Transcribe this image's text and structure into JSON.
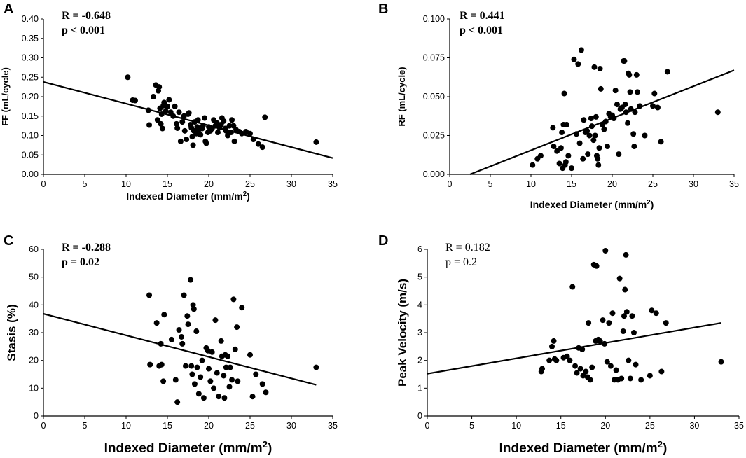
{
  "chart_data": [
    {
      "type": "scatter",
      "panel_label": "A",
      "title": "",
      "xlabel": "Indexed Diameter (mm/m²)",
      "ylabel": "FF (mL/cycle)",
      "xlim": [
        0,
        35
      ],
      "ylim": [
        0,
        0.4
      ],
      "xticks": [
        "0",
        "5",
        "10",
        "15",
        "20",
        "25",
        "30",
        "35"
      ],
      "yticks": [
        "0.00",
        "0.05",
        "0.10",
        "0.15",
        "0.20",
        "0.25",
        "0.30",
        "0.35",
        "0.40"
      ],
      "annotation": [
        "R = -0.648",
        "p < 0.001"
      ],
      "annotation_bold": true,
      "trendline": {
        "x": [
          0,
          35
        ],
        "y": [
          0.238,
          0.042
        ]
      },
      "points": [
        [
          10.2,
          0.25
        ],
        [
          10.8,
          0.191
        ],
        [
          11.1,
          0.19
        ],
        [
          12.7,
          0.165
        ],
        [
          12.8,
          0.127
        ],
        [
          13.3,
          0.2
        ],
        [
          13.6,
          0.23
        ],
        [
          13.8,
          0.14
        ],
        [
          13.9,
          0.215
        ],
        [
          14.0,
          0.225
        ],
        [
          14.1,
          0.17
        ],
        [
          14.2,
          0.13
        ],
        [
          14.3,
          0.155
        ],
        [
          14.4,
          0.118
        ],
        [
          14.5,
          0.177
        ],
        [
          14.6,
          0.185
        ],
        [
          14.8,
          0.163
        ],
        [
          15.0,
          0.175
        ],
        [
          15.2,
          0.192
        ],
        [
          15.4,
          0.16
        ],
        [
          15.7,
          0.15
        ],
        [
          15.9,
          0.175
        ],
        [
          16.1,
          0.13
        ],
        [
          16.2,
          0.119
        ],
        [
          16.4,
          0.16
        ],
        [
          16.6,
          0.085
        ],
        [
          16.8,
          0.135
        ],
        [
          17.0,
          0.15
        ],
        [
          17.1,
          0.112
        ],
        [
          17.3,
          0.09
        ],
        [
          17.5,
          0.155
        ],
        [
          17.6,
          0.158
        ],
        [
          17.8,
          0.128
        ],
        [
          17.9,
          0.12
        ],
        [
          18.0,
          0.097
        ],
        [
          18.1,
          0.075
        ],
        [
          18.2,
          0.112
        ],
        [
          18.3,
          0.135
        ],
        [
          18.5,
          0.105
        ],
        [
          18.6,
          0.122
        ],
        [
          18.7,
          0.14
        ],
        [
          18.8,
          0.115
        ],
        [
          19.0,
          0.102
        ],
        [
          19.2,
          0.118
        ],
        [
          19.3,
          0.125
        ],
        [
          19.5,
          0.145
        ],
        [
          19.6,
          0.085
        ],
        [
          19.7,
          0.08
        ],
        [
          19.9,
          0.108
        ],
        [
          20.0,
          0.122
        ],
        [
          20.2,
          0.112
        ],
        [
          20.4,
          0.118
        ],
        [
          20.6,
          0.14
        ],
        [
          20.8,
          0.125
        ],
        [
          21.0,
          0.132
        ],
        [
          21.1,
          0.108
        ],
        [
          21.3,
          0.12
        ],
        [
          21.5,
          0.128
        ],
        [
          21.6,
          0.145
        ],
        [
          21.8,
          0.137
        ],
        [
          22.0,
          0.118
        ],
        [
          22.1,
          0.112
        ],
        [
          22.3,
          0.1
        ],
        [
          22.5,
          0.125
        ],
        [
          22.7,
          0.108
        ],
        [
          22.8,
          0.14
        ],
        [
          23.0,
          0.125
        ],
        [
          23.1,
          0.085
        ],
        [
          23.3,
          0.115
        ],
        [
          23.7,
          0.11
        ],
        [
          24.0,
          0.105
        ],
        [
          24.5,
          0.11
        ],
        [
          25.0,
          0.105
        ],
        [
          25.4,
          0.09
        ],
        [
          26.0,
          0.078
        ],
        [
          26.5,
          0.07
        ],
        [
          26.8,
          0.147
        ],
        [
          33.0,
          0.083
        ]
      ]
    },
    {
      "type": "scatter",
      "panel_label": "B",
      "title": "",
      "xlabel": "Indexed Diameter (mm/m²)",
      "ylabel": "RF (mL/cycle)",
      "xlim": [
        0,
        35
      ],
      "ylim": [
        0,
        0.1
      ],
      "xticks": [
        "0",
        "5",
        "10",
        "15",
        "20",
        "25",
        "30",
        "35"
      ],
      "yticks": [
        "0.000",
        "0.025",
        "0.050",
        "0.075",
        "0.100"
      ],
      "annotation": [
        "R = 0.441",
        "p < 0.001"
      ],
      "annotation_bold": true,
      "trendline": {
        "x": [
          2.5,
          35
        ],
        "y": [
          0.0,
          0.067
        ]
      },
      "points": [
        [
          10.2,
          0.006
        ],
        [
          10.8,
          0.01
        ],
        [
          11.2,
          0.012
        ],
        [
          12.7,
          0.03
        ],
        [
          12.8,
          0.018
        ],
        [
          13.2,
          0.015
        ],
        [
          13.5,
          0.007
        ],
        [
          13.7,
          0.017
        ],
        [
          13.8,
          0.027
        ],
        [
          13.9,
          0.004
        ],
        [
          14.0,
          0.032
        ],
        [
          14.1,
          0.052
        ],
        [
          14.2,
          0.006
        ],
        [
          14.3,
          0.008
        ],
        [
          14.4,
          0.032
        ],
        [
          14.6,
          0.012
        ],
        [
          15.0,
          0.004
        ],
        [
          15.3,
          0.074
        ],
        [
          15.6,
          0.026
        ],
        [
          15.8,
          0.071
        ],
        [
          16.0,
          0.02
        ],
        [
          16.2,
          0.08
        ],
        [
          16.4,
          0.01
        ],
        [
          16.5,
          0.035
        ],
        [
          16.7,
          0.027
        ],
        [
          16.9,
          0.028
        ],
        [
          17.0,
          0.013
        ],
        [
          17.2,
          0.025
        ],
        [
          17.4,
          0.036
        ],
        [
          17.5,
          0.031
        ],
        [
          17.7,
          0.022
        ],
        [
          17.8,
          0.069
        ],
        [
          17.9,
          0.025
        ],
        [
          18.0,
          0.037
        ],
        [
          18.1,
          0.012
        ],
        [
          18.2,
          0.01
        ],
        [
          18.3,
          0.006
        ],
        [
          18.4,
          0.017
        ],
        [
          18.5,
          0.068
        ],
        [
          18.6,
          0.055
        ],
        [
          18.8,
          0.032
        ],
        [
          19.0,
          0.029
        ],
        [
          19.2,
          0.034
        ],
        [
          19.4,
          0.018
        ],
        [
          19.6,
          0.039
        ],
        [
          19.8,
          0.037
        ],
        [
          20.0,
          0.038
        ],
        [
          20.2,
          0.036
        ],
        [
          20.4,
          0.054
        ],
        [
          20.6,
          0.045
        ],
        [
          20.8,
          0.013
        ],
        [
          21.0,
          0.042
        ],
        [
          21.2,
          0.043
        ],
        [
          21.4,
          0.073
        ],
        [
          21.5,
          0.073
        ],
        [
          21.6,
          0.045
        ],
        [
          21.7,
          0.04
        ],
        [
          21.9,
          0.033
        ],
        [
          22.0,
          0.065
        ],
        [
          22.1,
          0.064
        ],
        [
          22.2,
          0.053
        ],
        [
          22.3,
          0.042
        ],
        [
          22.6,
          0.026
        ],
        [
          22.7,
          0.018
        ],
        [
          22.8,
          0.04
        ],
        [
          23.0,
          0.064
        ],
        [
          23.1,
          0.053
        ],
        [
          23.4,
          0.044
        ],
        [
          24.0,
          0.025
        ],
        [
          25.0,
          0.044
        ],
        [
          25.2,
          0.052
        ],
        [
          25.6,
          0.043
        ],
        [
          26.0,
          0.021
        ],
        [
          26.8,
          0.066
        ],
        [
          33.0,
          0.04
        ]
      ]
    },
    {
      "type": "scatter",
      "panel_label": "C",
      "title": "",
      "xlabel": "Indexed Diameter (mm/m²)",
      "ylabel": "Stasis (%)",
      "xlim": [
        0,
        35
      ],
      "ylim": [
        0,
        60
      ],
      "xticks": [
        "0",
        "5",
        "10",
        "15",
        "20",
        "25",
        "30",
        "35"
      ],
      "yticks": [
        "0",
        "10",
        "20",
        "30",
        "40",
        "50",
        "60"
      ],
      "annotation": [
        "R = -0.288",
        "p = 0.02"
      ],
      "annotation_bold": true,
      "trendline": {
        "x": [
          0,
          33
        ],
        "y": [
          36.8,
          11.2
        ]
      },
      "points": [
        [
          12.8,
          43.5
        ],
        [
          12.9,
          18.5
        ],
        [
          13.7,
          33.5
        ],
        [
          14.0,
          18.0
        ],
        [
          14.2,
          26.0
        ],
        [
          14.3,
          18.5
        ],
        [
          14.5,
          12.5
        ],
        [
          14.6,
          36.5
        ],
        [
          15.5,
          27.5
        ],
        [
          16.0,
          13.0
        ],
        [
          16.2,
          5.0
        ],
        [
          16.4,
          31.0
        ],
        [
          16.7,
          28.5
        ],
        [
          16.8,
          26.0
        ],
        [
          17.0,
          43.5
        ],
        [
          17.2,
          18.0
        ],
        [
          17.4,
          36.0
        ],
        [
          17.5,
          33.0
        ],
        [
          17.8,
          49.0
        ],
        [
          17.9,
          18.0
        ],
        [
          18.0,
          15.0
        ],
        [
          18.1,
          40.0
        ],
        [
          18.2,
          38.5
        ],
        [
          18.3,
          11.5
        ],
        [
          18.5,
          30.5
        ],
        [
          18.6,
          17.5
        ],
        [
          18.8,
          8.0
        ],
        [
          19.0,
          14.0
        ],
        [
          19.2,
          20.0
        ],
        [
          19.4,
          6.5
        ],
        [
          19.7,
          24.5
        ],
        [
          19.9,
          23.5
        ],
        [
          20.0,
          17.0
        ],
        [
          20.2,
          12.5
        ],
        [
          20.4,
          23.0
        ],
        [
          20.6,
          10.0
        ],
        [
          20.8,
          34.5
        ],
        [
          21.0,
          15.5
        ],
        [
          21.2,
          7.0
        ],
        [
          21.5,
          27.0
        ],
        [
          21.6,
          21.5
        ],
        [
          21.8,
          14.5
        ],
        [
          21.9,
          6.5
        ],
        [
          22.0,
          22.0
        ],
        [
          22.1,
          17.5
        ],
        [
          22.3,
          21.5
        ],
        [
          22.5,
          10.5
        ],
        [
          22.6,
          17.5
        ],
        [
          22.8,
          13.0
        ],
        [
          23.0,
          42.0
        ],
        [
          23.2,
          24.0
        ],
        [
          23.4,
          32.0
        ],
        [
          23.5,
          12.5
        ],
        [
          24.0,
          39.0
        ],
        [
          25.0,
          22.0
        ],
        [
          25.3,
          7.0
        ],
        [
          25.7,
          15.0
        ],
        [
          26.5,
          11.5
        ],
        [
          26.9,
          8.5
        ],
        [
          33.0,
          17.5
        ]
      ]
    },
    {
      "type": "scatter",
      "panel_label": "D",
      "title": "",
      "xlabel": "Indexed Diameter (mm/m²)",
      "ylabel": "Peak Velocity (m/s)",
      "xlim": [
        0,
        35
      ],
      "ylim": [
        0,
        6
      ],
      "xticks": [
        "0",
        "5",
        "10",
        "15",
        "20",
        "25",
        "30",
        "35"
      ],
      "yticks": [
        "0",
        "1",
        "2",
        "3",
        "4",
        "5",
        "6"
      ],
      "annotation": [
        "R = 0.182",
        "p = 0.2"
      ],
      "annotation_bold": false,
      "trendline": {
        "x": [
          0,
          33
        ],
        "y": [
          1.52,
          3.35
        ]
      },
      "points": [
        [
          12.8,
          1.6
        ],
        [
          12.9,
          1.7
        ],
        [
          13.7,
          2.0
        ],
        [
          14.0,
          2.5
        ],
        [
          14.2,
          2.7
        ],
        [
          14.3,
          2.05
        ],
        [
          14.5,
          2.0
        ],
        [
          15.3,
          2.1
        ],
        [
          15.7,
          2.15
        ],
        [
          16.0,
          2.0
        ],
        [
          16.3,
          4.65
        ],
        [
          16.6,
          1.8
        ],
        [
          16.8,
          1.55
        ],
        [
          17.0,
          2.45
        ],
        [
          17.2,
          1.7
        ],
        [
          17.4,
          2.4
        ],
        [
          17.5,
          1.45
        ],
        [
          17.8,
          1.6
        ],
        [
          18.0,
          1.4
        ],
        [
          18.1,
          3.35
        ],
        [
          18.3,
          1.3
        ],
        [
          18.5,
          1.75
        ],
        [
          18.7,
          5.45
        ],
        [
          18.9,
          2.7
        ],
        [
          19.0,
          5.4
        ],
        [
          19.2,
          2.75
        ],
        [
          19.4,
          2.7
        ],
        [
          19.7,
          3.45
        ],
        [
          19.9,
          2.6
        ],
        [
          20.0,
          5.95
        ],
        [
          20.2,
          1.95
        ],
        [
          20.4,
          3.35
        ],
        [
          20.6,
          1.8
        ],
        [
          20.8,
          3.7
        ],
        [
          21.0,
          1.3
        ],
        [
          21.2,
          1.65
        ],
        [
          21.4,
          1.3
        ],
        [
          21.6,
          4.95
        ],
        [
          21.8,
          1.35
        ],
        [
          22.0,
          3.05
        ],
        [
          22.1,
          3.6
        ],
        [
          22.2,
          4.55
        ],
        [
          22.3,
          5.8
        ],
        [
          22.4,
          3.75
        ],
        [
          22.6,
          2.0
        ],
        [
          22.8,
          1.35
        ],
        [
          23.0,
          3.6
        ],
        [
          23.2,
          3.0
        ],
        [
          23.4,
          1.85
        ],
        [
          24.0,
          1.3
        ],
        [
          25.0,
          1.45
        ],
        [
          25.2,
          3.8
        ],
        [
          25.7,
          3.7
        ],
        [
          26.3,
          1.6
        ],
        [
          26.8,
          3.35
        ],
        [
          33.0,
          1.95
        ]
      ]
    }
  ]
}
